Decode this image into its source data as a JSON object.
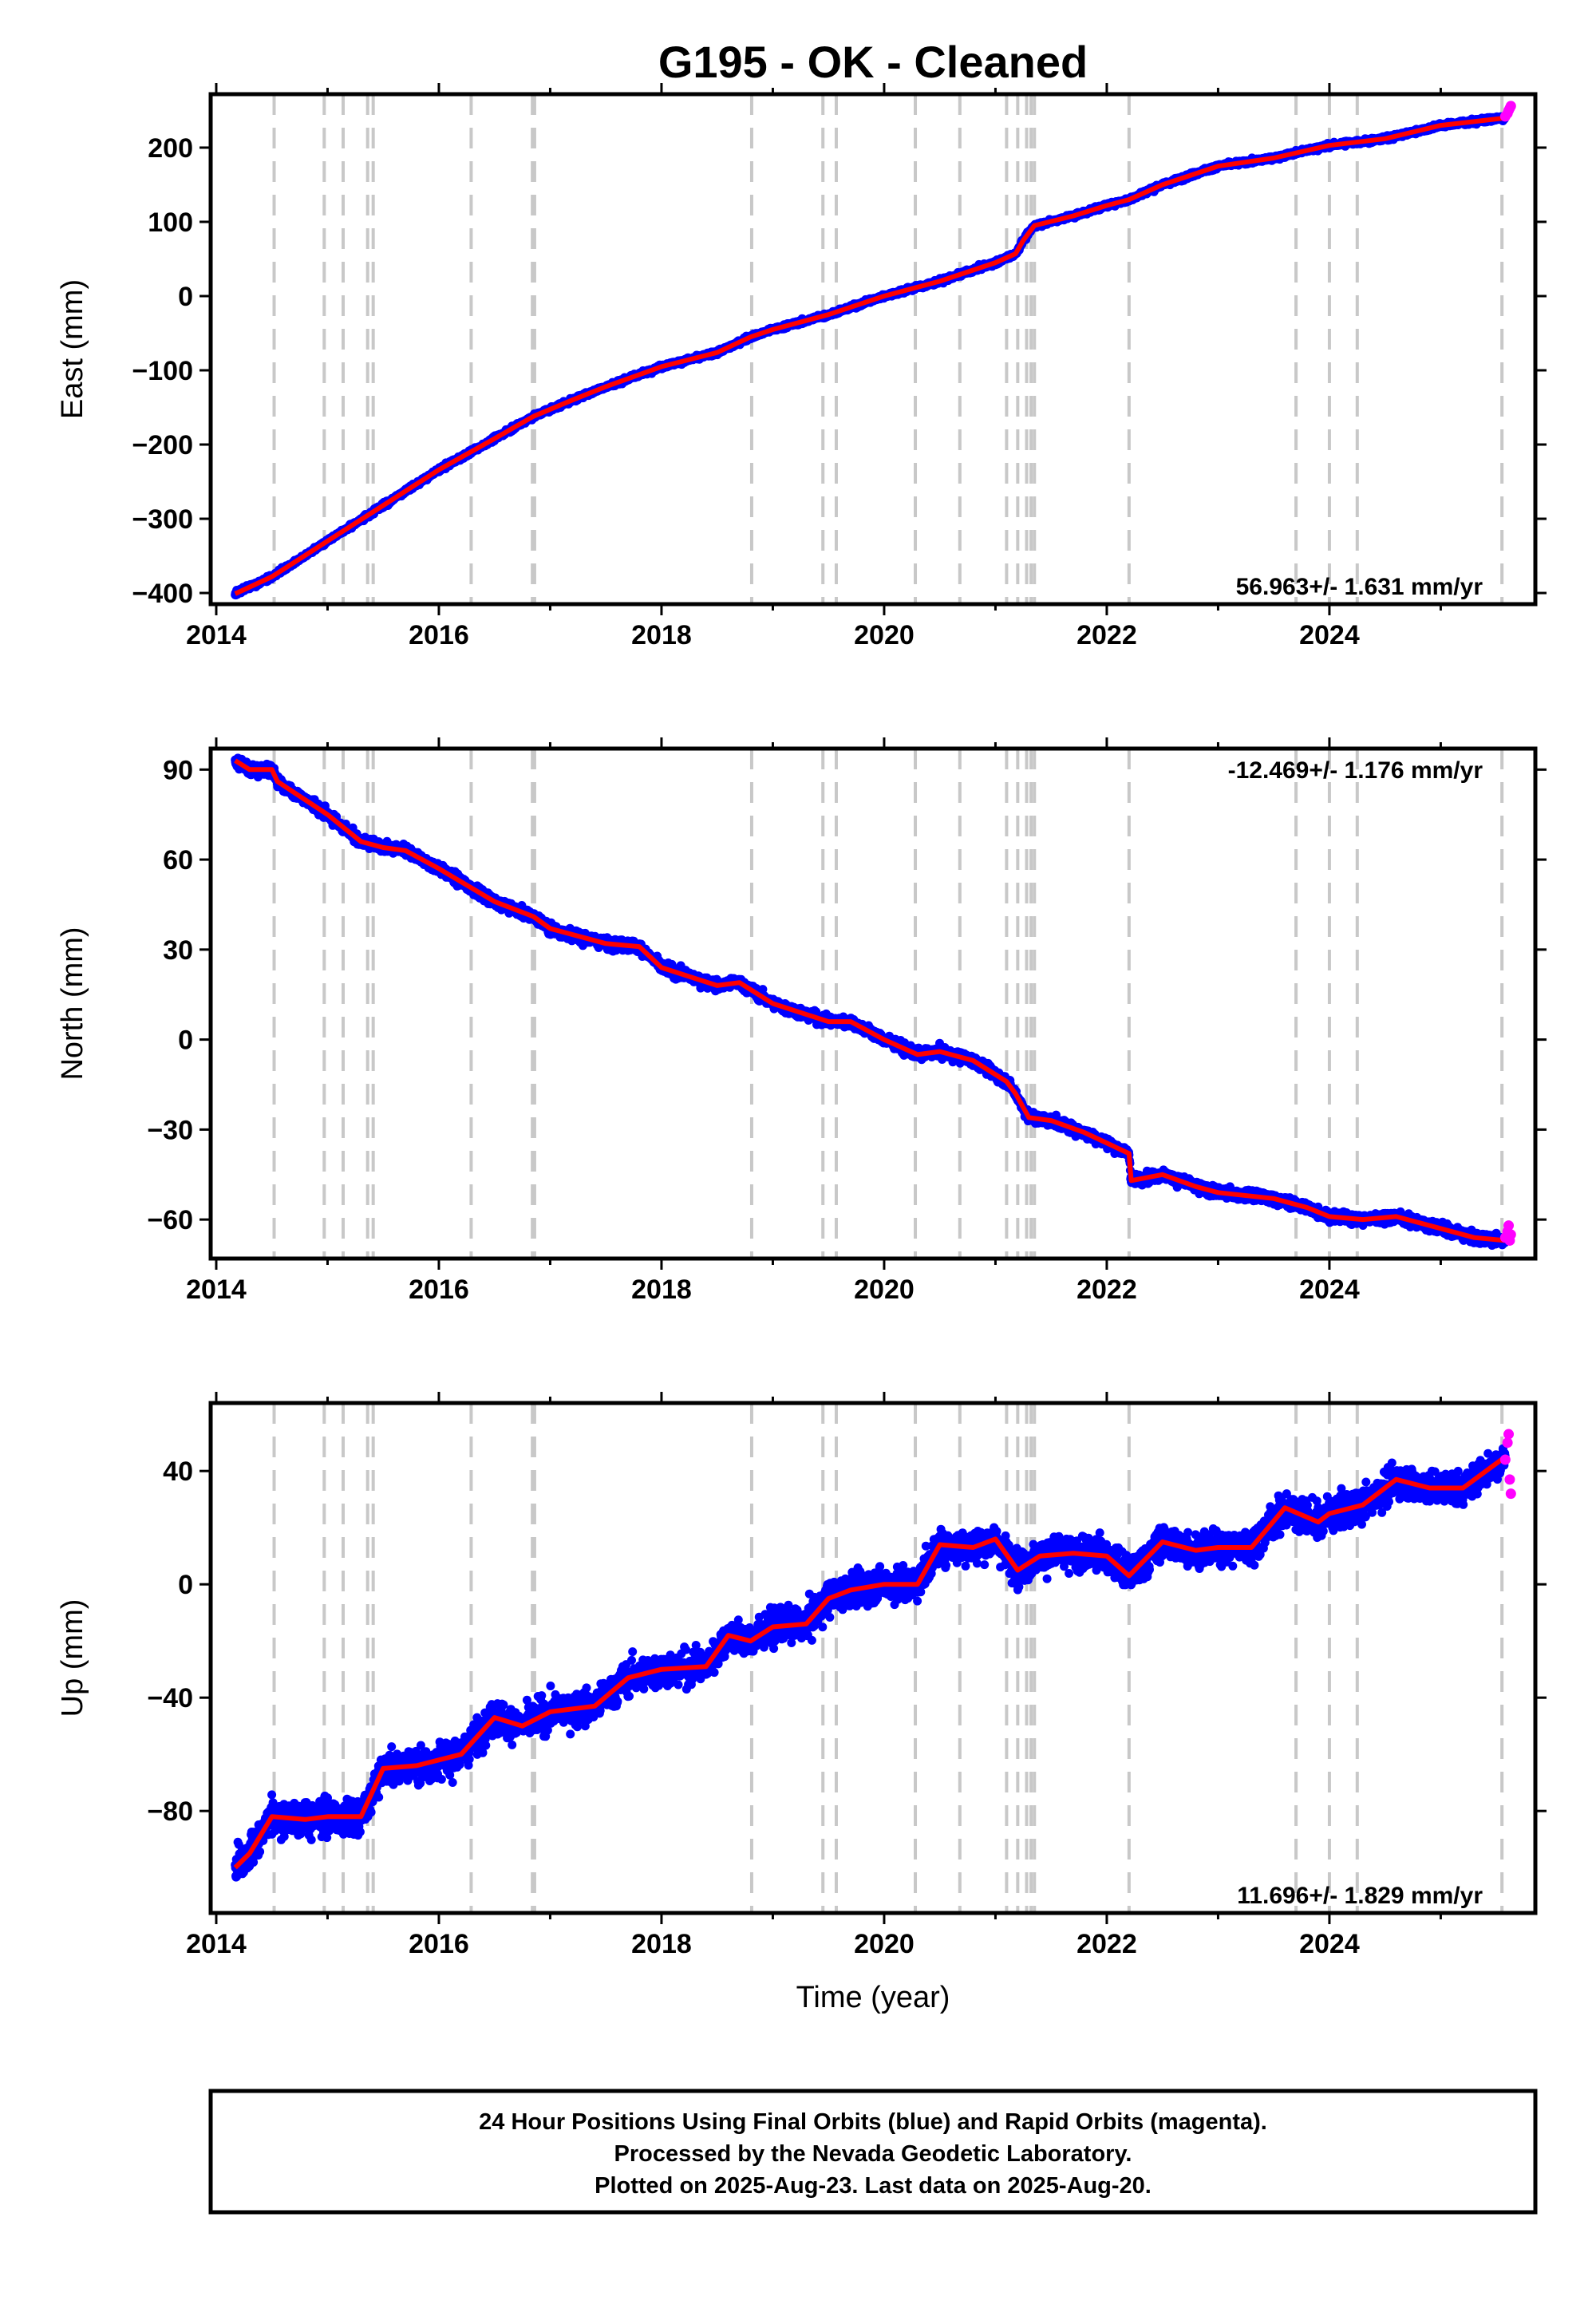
{
  "title": "G195  - OK - Cleaned",
  "xlabel": "Time (year)",
  "colors": {
    "final": "#0000ff",
    "rapid": "#ff00ff",
    "model": "#ff0000",
    "events": "#c8c8c8"
  },
  "footer": {
    "line1": "24 Hour Positions Using Final Orbits (blue) and Rapid Orbits (magenta).",
    "line2": "Processed by the Nevada Geodetic Laboratory.",
    "line3": "Plotted on 2025-Aug-23. Last data on 2025-Aug-20."
  },
  "chart_data": [
    {
      "type": "scatter",
      "component": "East",
      "ylabel": "East (mm)",
      "rate": "56.963+/- 1.631 mm/yr",
      "xlim": [
        2013.95,
        2025.85
      ],
      "ylim": [
        -415,
        272
      ],
      "xticks": [
        "2014",
        "2016",
        "2018",
        "2020",
        "2022",
        "2024"
      ],
      "yticks": [
        "200",
        "100",
        "0",
        "−100",
        "−200",
        "−300",
        "−400"
      ],
      "noise_mm": 2.5,
      "trend": [
        [
          2014.17,
          -401
        ],
        [
          2014.5,
          -378
        ],
        [
          2015.0,
          -330
        ],
        [
          2015.5,
          -282
        ],
        [
          2016.0,
          -234
        ],
        [
          2016.5,
          -192
        ],
        [
          2016.85,
          -162
        ],
        [
          2017.2,
          -140
        ],
        [
          2017.5,
          -122
        ],
        [
          2018.0,
          -95
        ],
        [
          2018.5,
          -76
        ],
        [
          2018.8,
          -55
        ],
        [
          2019.0,
          -45
        ],
        [
          2019.5,
          -25
        ],
        [
          2020.0,
          0
        ],
        [
          2020.5,
          20
        ],
        [
          2021.0,
          45
        ],
        [
          2021.18,
          57
        ],
        [
          2021.25,
          75
        ],
        [
          2021.35,
          95
        ],
        [
          2021.7,
          108
        ],
        [
          2022.0,
          122
        ],
        [
          2022.2,
          130
        ],
        [
          2022.5,
          150
        ],
        [
          2023.0,
          175
        ],
        [
          2023.5,
          186
        ],
        [
          2024.0,
          203
        ],
        [
          2024.5,
          212
        ],
        [
          2025.0,
          230
        ],
        [
          2025.58,
          240
        ]
      ],
      "rapid": [
        [
          2025.58,
          242
        ],
        [
          2025.6,
          246
        ],
        [
          2025.61,
          250
        ],
        [
          2025.62,
          253
        ],
        [
          2025.63,
          256
        ]
      ]
    },
    {
      "type": "scatter",
      "component": "North",
      "ylabel": "North (mm)",
      "rate": "-12.469+/- 1.176 mm/yr",
      "xlim": [
        2013.95,
        2025.85
      ],
      "ylim": [
        -73,
        97
      ],
      "xticks": [
        "2014",
        "2016",
        "2018",
        "2020",
        "2022",
        "2024"
      ],
      "yticks": [
        "90",
        "60",
        "30",
        "0",
        "−30",
        "−60"
      ],
      "noise_mm": 1.5,
      "trend": [
        [
          2014.17,
          93
        ],
        [
          2014.3,
          90
        ],
        [
          2014.5,
          90
        ],
        [
          2014.55,
          86
        ],
        [
          2015.0,
          75
        ],
        [
          2015.3,
          66
        ],
        [
          2015.5,
          64
        ],
        [
          2015.7,
          63
        ],
        [
          2016.0,
          57
        ],
        [
          2016.5,
          46
        ],
        [
          2016.85,
          41
        ],
        [
          2017.0,
          37
        ],
        [
          2017.5,
          32
        ],
        [
          2017.8,
          31
        ],
        [
          2018.0,
          24
        ],
        [
          2018.5,
          18
        ],
        [
          2018.7,
          19
        ],
        [
          2019.0,
          12
        ],
        [
          2019.5,
          6
        ],
        [
          2019.7,
          6
        ],
        [
          2020.0,
          0
        ],
        [
          2020.3,
          -5
        ],
        [
          2020.5,
          -4
        ],
        [
          2020.8,
          -7
        ],
        [
          2021.1,
          -14
        ],
        [
          2021.18,
          -18
        ],
        [
          2021.3,
          -26
        ],
        [
          2021.5,
          -27
        ],
        [
          2021.8,
          -31
        ],
        [
          2022.2,
          -38
        ],
        [
          2022.22,
          -47
        ],
        [
          2022.5,
          -45
        ],
        [
          2022.8,
          -49
        ],
        [
          2023.0,
          -51
        ],
        [
          2023.5,
          -53
        ],
        [
          2023.8,
          -56
        ],
        [
          2024.0,
          -59
        ],
        [
          2024.3,
          -60
        ],
        [
          2024.6,
          -59
        ],
        [
          2025.0,
          -63
        ],
        [
          2025.3,
          -66
        ],
        [
          2025.58,
          -67
        ]
      ],
      "rapid": [
        [
          2025.58,
          -66
        ],
        [
          2025.6,
          -64
        ],
        [
          2025.61,
          -62
        ],
        [
          2025.62,
          -67
        ],
        [
          2025.63,
          -65
        ]
      ]
    },
    {
      "type": "scatter",
      "component": "Up",
      "ylabel": "Up (mm)",
      "rate": "11.696+/- 1.829 mm/yr",
      "xlim": [
        2013.95,
        2025.85
      ],
      "ylim": [
        -116,
        64
      ],
      "xticks": [
        "2014",
        "2016",
        "2018",
        "2020",
        "2022",
        "2024"
      ],
      "yticks": [
        "40",
        "0",
        "−40",
        "−80"
      ],
      "noise_mm": 5.0,
      "trend": [
        [
          2014.17,
          -100
        ],
        [
          2014.3,
          -95
        ],
        [
          2014.5,
          -82
        ],
        [
          2014.8,
          -83
        ],
        [
          2015.0,
          -82
        ],
        [
          2015.3,
          -82
        ],
        [
          2015.5,
          -65
        ],
        [
          2015.8,
          -64
        ],
        [
          2016.2,
          -60
        ],
        [
          2016.5,
          -47
        ],
        [
          2016.75,
          -50
        ],
        [
          2017.0,
          -45
        ],
        [
          2017.4,
          -43
        ],
        [
          2017.7,
          -33
        ],
        [
          2018.0,
          -30
        ],
        [
          2018.4,
          -29
        ],
        [
          2018.6,
          -18
        ],
        [
          2018.8,
          -20
        ],
        [
          2019.0,
          -15
        ],
        [
          2019.3,
          -14
        ],
        [
          2019.5,
          -5
        ],
        [
          2019.7,
          -2
        ],
        [
          2020.0,
          0
        ],
        [
          2020.3,
          0
        ],
        [
          2020.5,
          14
        ],
        [
          2020.8,
          13
        ],
        [
          2021.0,
          16
        ],
        [
          2021.2,
          5
        ],
        [
          2021.4,
          10
        ],
        [
          2021.7,
          11
        ],
        [
          2022.0,
          10
        ],
        [
          2022.2,
          3
        ],
        [
          2022.5,
          15
        ],
        [
          2022.8,
          12
        ],
        [
          2023.0,
          13
        ],
        [
          2023.3,
          13
        ],
        [
          2023.6,
          27
        ],
        [
          2023.9,
          22
        ],
        [
          2024.0,
          25
        ],
        [
          2024.3,
          28
        ],
        [
          2024.6,
          37
        ],
        [
          2024.9,
          34
        ],
        [
          2025.2,
          34
        ],
        [
          2025.58,
          45
        ]
      ],
      "rapid": [
        [
          2025.58,
          44
        ],
        [
          2025.6,
          50
        ],
        [
          2025.61,
          53
        ],
        [
          2025.62,
          37
        ],
        [
          2025.63,
          32
        ]
      ]
    }
  ]
}
